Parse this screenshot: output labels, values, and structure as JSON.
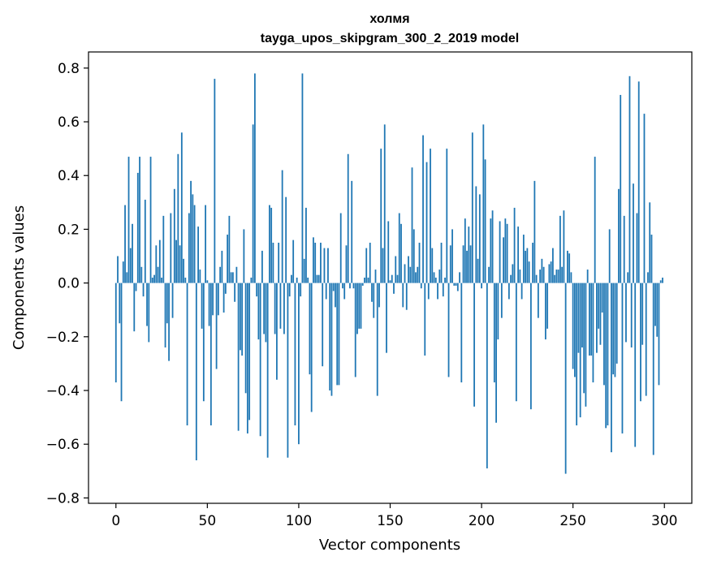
{
  "chart_data": {
    "type": "bar",
    "title": "холмя",
    "subtitle": "tayga_upos_skipgram_300_2_2019 model",
    "xlabel": "Vector components",
    "ylabel": "Components values",
    "xlim": [
      -15,
      315
    ],
    "ylim": [
      -0.82,
      0.86
    ],
    "xticks": [
      0,
      50,
      100,
      150,
      200,
      250,
      300
    ],
    "yticks": [
      -0.8,
      -0.6,
      -0.4,
      -0.2,
      0.0,
      0.2,
      0.4,
      0.6,
      0.8
    ],
    "xtick_labels": [
      "0",
      "50",
      "100",
      "150",
      "200",
      "250",
      "300"
    ],
    "ytick_labels": [
      "−0.8",
      "−0.6",
      "−0.4",
      "−0.2",
      "0.0",
      "0.2",
      "0.4",
      "0.6",
      "0.8"
    ],
    "color": "#1f77b4",
    "series": [
      {
        "name": "холмя",
        "values": [
          -0.37,
          0.1,
          -0.15,
          -0.44,
          0.08,
          0.29,
          0.04,
          0.47,
          0.13,
          0.22,
          -0.18,
          -0.03,
          0.41,
          0.47,
          0.06,
          -0.05,
          0.31,
          -0.16,
          -0.22,
          0.47,
          0.02,
          0.03,
          0.14,
          0.06,
          0.16,
          0.02,
          0.25,
          -0.24,
          -0.15,
          -0.29,
          0.26,
          -0.13,
          0.35,
          0.16,
          0.48,
          0.14,
          0.56,
          0.09,
          0.02,
          -0.53,
          0.26,
          0.38,
          0.33,
          0.29,
          -0.66,
          0.21,
          0.05,
          -0.17,
          -0.44,
          0.29,
          0.01,
          -0.16,
          -0.53,
          -0.12,
          0.76,
          -0.32,
          -0.12,
          0.06,
          0.12,
          -0.11,
          -0.04,
          0.18,
          0.25,
          0.04,
          0.04,
          -0.07,
          0.06,
          -0.55,
          -0.25,
          -0.27,
          0.2,
          -0.41,
          -0.56,
          -0.51,
          0.02,
          0.59,
          0.78,
          -0.05,
          -0.21,
          -0.57,
          0.12,
          -0.19,
          -0.22,
          -0.65,
          0.29,
          0.28,
          0.15,
          -0.19,
          -0.36,
          0.15,
          -0.17,
          0.42,
          -0.19,
          0.32,
          -0.65,
          -0.05,
          0.03,
          0.16,
          -0.53,
          0.02,
          -0.6,
          -0.05,
          0.78,
          0.09,
          0.28,
          0.02,
          -0.34,
          -0.48,
          0.17,
          0.15,
          0.03,
          0.03,
          0.15,
          -0.31,
          0.13,
          -0.06,
          0.13,
          -0.4,
          -0.42,
          -0.03,
          -0.09,
          -0.38,
          -0.38,
          0.26,
          -0.02,
          -0.06,
          0.14,
          0.48,
          -0.02,
          0.38,
          -0.02,
          -0.35,
          -0.19,
          -0.17,
          -0.17,
          -0.01,
          0.02,
          0.13,
          0.02,
          0.15,
          -0.07,
          -0.13,
          0.05,
          -0.42,
          -0.09,
          0.5,
          0.13,
          0.59,
          -0.26,
          0.23,
          0.01,
          0.03,
          -0.04,
          0.1,
          0.03,
          0.26,
          0.22,
          -0.09,
          0.07,
          -0.1,
          0.1,
          0.06,
          0.43,
          0.2,
          0.04,
          0.06,
          0.15,
          -0.02,
          0.55,
          -0.27,
          0.45,
          -0.06,
          0.5,
          0.13,
          0.04,
          0.02,
          -0.06,
          0.05,
          0.15,
          -0.05,
          0.02,
          0.5,
          -0.35,
          0.14,
          0.2,
          -0.01,
          -0.01,
          -0.03,
          0.04,
          -0.37,
          0.14,
          0.24,
          0.12,
          0.21,
          0.14,
          0.56,
          -0.46,
          0.36,
          0.09,
          0.33,
          -0.02,
          0.59,
          0.46,
          -0.69,
          0.06,
          0.24,
          0.27,
          -0.37,
          -0.52,
          -0.21,
          0.23,
          -0.13,
          0.17,
          0.24,
          0.22,
          -0.06,
          0.03,
          0.07,
          0.28,
          -0.44,
          0.21,
          0.05,
          -0.06,
          0.18,
          0.12,
          0.13,
          0.08,
          -0.47,
          0.15,
          0.38,
          0.03,
          -0.13,
          0.05,
          0.09,
          0.06,
          -0.21,
          -0.17,
          0.07,
          0.08,
          0.13,
          0.03,
          0.05,
          0.05,
          0.25,
          0.06,
          0.27,
          -0.71,
          0.12,
          0.11,
          0.04,
          -0.32,
          -0.35,
          -0.53,
          -0.26,
          -0.5,
          -0.24,
          -0.41,
          -0.46,
          0.05,
          -0.27,
          -0.27,
          -0.37,
          0.47,
          -0.26,
          -0.17,
          -0.23,
          -0.11,
          -0.38,
          -0.54,
          -0.53,
          0.2,
          -0.63,
          -0.34,
          -0.35,
          -0.3,
          0.35,
          0.7,
          -0.56,
          0.25,
          -0.22,
          0.04,
          0.77,
          -0.24,
          0.37,
          -0.61,
          0.26,
          0.75,
          -0.44,
          -0.23,
          0.63,
          -0.42,
          0.04,
          0.3,
          0.18,
          -0.64,
          -0.16,
          -0.2,
          -0.38,
          0.01,
          0.02
        ]
      }
    ]
  }
}
